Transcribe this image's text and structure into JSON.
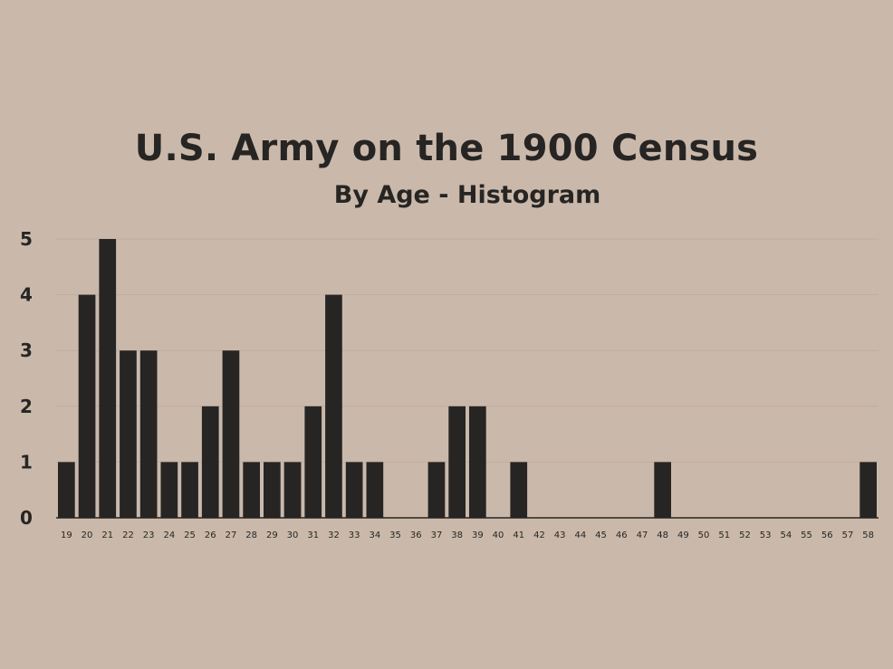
{
  "chart_data": {
    "type": "bar",
    "title": "U.S. Army on the 1900 Census",
    "subtitle": "By Age - Histogram",
    "xlabel": "",
    "ylabel": "",
    "categories": [
      "19",
      "20",
      "21",
      "22",
      "23",
      "24",
      "25",
      "26",
      "27",
      "28",
      "29",
      "30",
      "31",
      "32",
      "33",
      "34",
      "35",
      "36",
      "37",
      "38",
      "39",
      "40",
      "41",
      "42",
      "43",
      "44",
      "45",
      "46",
      "47",
      "48",
      "49",
      "50",
      "51",
      "52",
      "53",
      "54",
      "55",
      "56",
      "57",
      "58"
    ],
    "values": [
      1,
      4,
      5,
      3,
      3,
      1,
      1,
      2,
      3,
      1,
      1,
      1,
      2,
      4,
      1,
      1,
      0,
      0,
      1,
      2,
      2,
      0,
      1,
      0,
      0,
      0,
      0,
      0,
      0,
      1,
      0,
      0,
      0,
      0,
      0,
      0,
      0,
      0,
      0,
      1
    ],
    "ylim": [
      0,
      5
    ],
    "yticks": [
      0,
      1,
      2,
      3,
      4,
      5
    ],
    "grid": true,
    "legend": "none",
    "colors": {
      "background": "#cab9ab",
      "bar": "#272523",
      "text": "#272523",
      "grid": "#c0ad9f"
    }
  }
}
